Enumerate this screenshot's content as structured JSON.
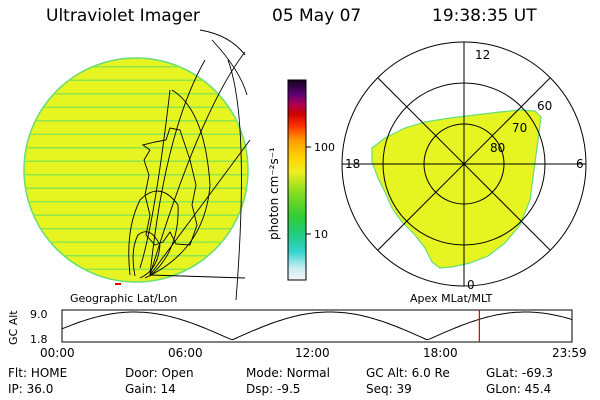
{
  "header": {
    "title": "Ultraviolet Imager",
    "date": "05 May 07",
    "time": "19:38:35 UT"
  },
  "colorbar": {
    "label": "photon cm⁻²s⁻¹",
    "ticks": [
      "100",
      "10"
    ]
  },
  "geo_panel": {
    "label": "Geographic Lat/Lon"
  },
  "polar_panel": {
    "label": "Apex MLat/MLT",
    "mlt_labels": [
      "12",
      "18",
      "6",
      "0"
    ],
    "lat_labels": [
      "60",
      "70",
      "80"
    ]
  },
  "altitude_plot": {
    "ylabel": "GC Alt",
    "yticks": [
      "9.0",
      "1.8"
    ],
    "xticks": [
      "00:00",
      "06:00",
      "12:00",
      "18:00",
      "23:59"
    ],
    "marker_time_hours": 19.64,
    "colors": {
      "marker": "#d40000"
    }
  },
  "info": {
    "row1": [
      {
        "key": "Flt:",
        "val": "HOME"
      },
      {
        "key": "Door:",
        "val": "Open"
      },
      {
        "key": "Mode:",
        "val": "Normal"
      },
      {
        "key": "GC Alt:",
        "val": "6.0 Re"
      },
      {
        "key": "GLat:",
        "val": "-69.3"
      }
    ],
    "row2": [
      {
        "key": "IP:",
        "val": "36.0"
      },
      {
        "key": "Gain:",
        "val": "14"
      },
      {
        "key": "Dsp:",
        "val": "-9.5"
      },
      {
        "key": "Seq:",
        "val": "39"
      },
      {
        "key": "GLon:",
        "val": "45.4"
      }
    ]
  },
  "colors": {
    "image_fill": "#e6f522",
    "image_edge": "#66dd77",
    "stripe": "#8ee64e"
  }
}
